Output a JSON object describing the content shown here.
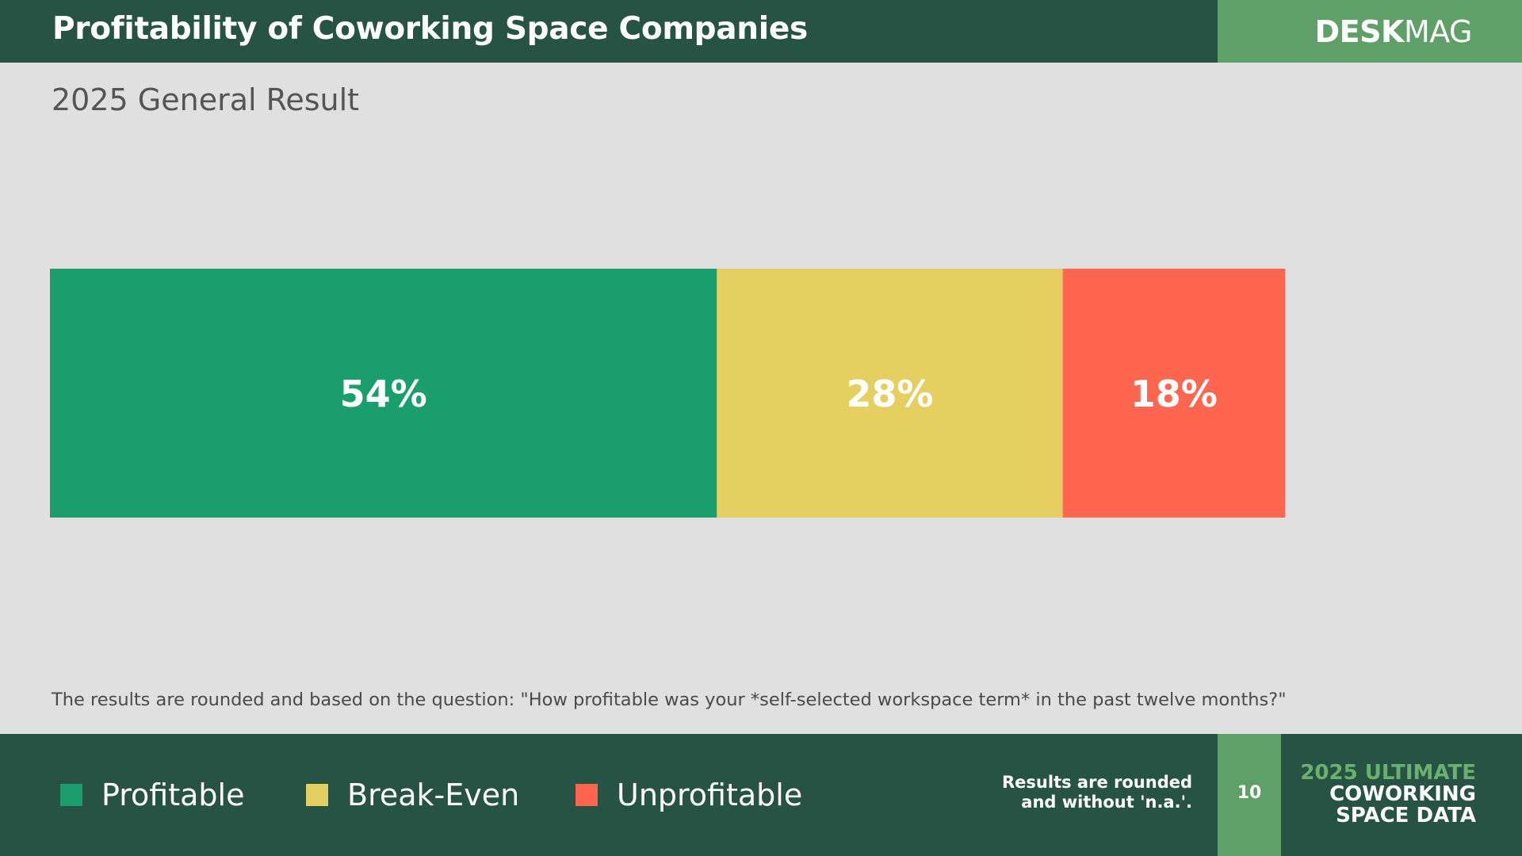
{
  "header": {
    "title": "Profitability of Coworking Space Companies",
    "brand_bold": "DESK",
    "brand_light": "MAG"
  },
  "subtitle": "2025 General Result",
  "chart_data": {
    "type": "bar",
    "orientation": "horizontal-stacked",
    "title": "",
    "categories": [
      ""
    ],
    "series": [
      {
        "name": "Profitable",
        "values": [
          54
        ],
        "label": "54%",
        "color": "#1a9e6e"
      },
      {
        "name": "Break-Even",
        "values": [
          28
        ],
        "label": "28%",
        "color": "#e4cf60"
      },
      {
        "name": "Unprofitable",
        "values": [
          18
        ],
        "label": "18%",
        "color": "#ff6650"
      }
    ],
    "unit": "%",
    "xlim": [
      0,
      100
    ],
    "grid": false,
    "legend": "bottom-left"
  },
  "footnote": "The results are rounded and based on the question: \"How profitable was your *self-selected workspace term* in the past twelve months?\"",
  "footer": {
    "note_line1": "Results are rounded",
    "note_line2": "and without 'n.a.'.",
    "page_number": "10",
    "report_line1": "2025 ULTIMATE",
    "report_line2": "COWORKING",
    "report_line3": "SPACE DATA"
  },
  "colors": {
    "header_bg": "#275345",
    "accent_green": "#5fa068",
    "background": "#e0e0e0"
  }
}
